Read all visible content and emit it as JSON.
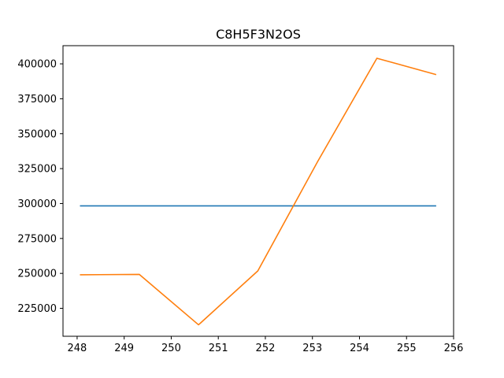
{
  "chart_data": {
    "type": "line",
    "title": "C8H5F3N2OS",
    "xlabel": "",
    "ylabel": "",
    "xlim": [
      247.7,
      256.0
    ],
    "ylim": [
      205000,
      413000
    ],
    "xticks": [
      248,
      249,
      250,
      251,
      252,
      253,
      254,
      255,
      256
    ],
    "yticks": [
      225000,
      250000,
      275000,
      300000,
      325000,
      350000,
      375000,
      400000
    ],
    "grid": false,
    "series": [
      {
        "color": "#1f77b4",
        "x": [
          248.06,
          255.63
        ],
        "y": [
          298300,
          298300
        ]
      },
      {
        "color": "#ff7f0e",
        "x": [
          248.06,
          249.32,
          250.58,
          251.84,
          253.11,
          254.37,
          255.63
        ],
        "y": [
          249000,
          249300,
          213200,
          251800,
          330000,
          404000,
          392300
        ]
      }
    ]
  }
}
